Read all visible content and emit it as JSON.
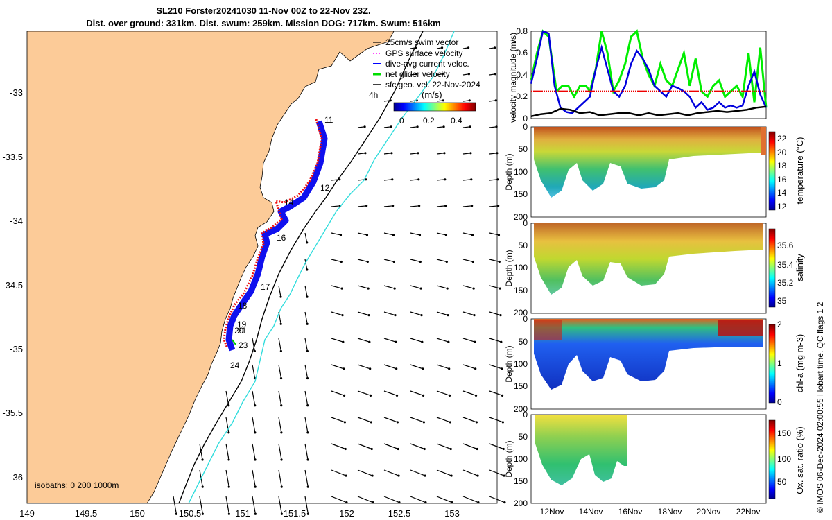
{
  "header": {
    "title_line1": "SL210 Forster20241030 11-Nov 00Z to 22-Nov 23Z.",
    "title_line2": "Dist. over ground: 331km. Dist. swum: 259km. Mission DOG: 717km. Swum: 516km"
  },
  "map": {
    "x_ticks": [
      "149",
      "149.5",
      "150",
      "150.5",
      "151",
      "151.5",
      "152",
      "152.5",
      "153"
    ],
    "y_ticks": [
      "-33",
      "-33.5",
      "-34",
      "-34.5",
      "-35",
      "-35.5",
      "-36"
    ],
    "legend": [
      {
        "label": "25cm/s swim vector",
        "color": "#000000"
      },
      {
        "label": "GPS surface velocity",
        "color": "#ff00ff"
      },
      {
        "label": "dive-avg current veloc.",
        "color": "#0000ff"
      },
      {
        "label": "net glider velocity",
        "color": "#00dd00"
      },
      {
        "label": "sfc geo. vel. 22-Nov-2024",
        "color": "#000000"
      }
    ],
    "scale_label": "4h",
    "colorbar_unit": "(m/s)",
    "colorbar_ticks": [
      "0",
      "0.2",
      "0.4"
    ],
    "day_labels": [
      "11",
      "12",
      "14",
      "16",
      "17",
      "18",
      "19",
      "20",
      "21",
      "23",
      "24"
    ],
    "isobaths_label": "isobaths: 0   200  1000m"
  },
  "colors": {
    "land": "#fccb98",
    "track_blue": "#1010ee",
    "track_red": "#ee1010",
    "isobath_200": "#000000",
    "isobath_1000": "#33dddd"
  },
  "chart_data": [
    {
      "type": "line",
      "title": "",
      "ylabel": "velocity magnitude (m/s)",
      "ylim": [
        0,
        0.8
      ],
      "yticks": [
        "0",
        "0.2",
        "0.4",
        "0.6",
        "0.8"
      ],
      "xlim_days": [
        11,
        23
      ],
      "series": [
        {
          "name": "net glider velocity",
          "color": "#00ee00",
          "x": [
            11.0,
            11.3,
            11.6,
            11.9,
            12.3,
            12.6,
            12.9,
            13.2,
            13.5,
            13.8,
            14.0,
            14.3,
            14.6,
            14.9,
            15.2,
            15.5,
            15.8,
            16.1,
            16.4,
            16.7,
            17.0,
            17.3,
            17.6,
            17.9,
            18.2,
            18.5,
            18.8,
            19.1,
            19.4,
            19.7,
            20.0,
            20.3,
            20.6,
            20.9,
            21.2,
            21.5,
            21.8,
            22.1,
            22.4,
            22.7,
            23.0
          ],
          "y": [
            0.35,
            0.6,
            0.8,
            0.75,
            0.25,
            0.3,
            0.3,
            0.2,
            0.3,
            0.3,
            0.25,
            0.45,
            0.8,
            0.6,
            0.25,
            0.35,
            0.5,
            0.75,
            0.8,
            0.55,
            0.4,
            0.3,
            0.5,
            0.35,
            0.3,
            0.45,
            0.6,
            0.3,
            0.55,
            0.25,
            0.2,
            0.3,
            0.35,
            0.2,
            0.25,
            0.3,
            0.2,
            0.6,
            0.15,
            0.65,
            0.1
          ]
        },
        {
          "name": "dive-avg current veloc.",
          "color": "#0000dd",
          "x": [
            11.0,
            11.3,
            11.6,
            11.9,
            12.2,
            12.5,
            12.8,
            13.1,
            13.4,
            13.7,
            14.0,
            14.3,
            14.6,
            14.9,
            15.2,
            15.5,
            15.8,
            16.1,
            16.4,
            16.7,
            17.0,
            17.3,
            17.6,
            17.9,
            18.2,
            18.5,
            18.8,
            19.1,
            19.4,
            19.7,
            20.0,
            20.3,
            20.6,
            20.9,
            21.2,
            21.5,
            21.8,
            22.1,
            22.4,
            22.7,
            23.0
          ],
          "y": [
            0.32,
            0.55,
            0.8,
            0.78,
            0.3,
            0.1,
            0.06,
            0.05,
            0.1,
            0.15,
            0.2,
            0.45,
            0.65,
            0.45,
            0.25,
            0.2,
            0.3,
            0.5,
            0.62,
            0.55,
            0.45,
            0.3,
            0.25,
            0.2,
            0.3,
            0.28,
            0.25,
            0.2,
            0.1,
            0.15,
            0.08,
            0.1,
            0.15,
            0.1,
            0.12,
            0.1,
            0.12,
            0.3,
            0.43,
            0.22,
            0.1
          ]
        },
        {
          "name": "GPS surface velocity",
          "color": "#ee0000",
          "x": [
            11.0,
            23.0
          ],
          "y": [
            0.25,
            0.25
          ]
        },
        {
          "name": "sfc geo. vel.",
          "color": "#000000",
          "x": [
            11.0,
            11.5,
            12.0,
            12.5,
            13.0,
            13.5,
            14.0,
            14.5,
            15.0,
            15.5,
            16.0,
            16.5,
            17.0,
            17.5,
            18.0,
            18.5,
            19.0,
            19.5,
            20.0,
            20.5,
            21.0,
            21.5,
            22.0,
            22.5,
            23.0
          ],
          "y": [
            0.02,
            0.04,
            0.05,
            0.09,
            0.08,
            0.05,
            0.06,
            0.03,
            0.04,
            0.05,
            0.05,
            0.03,
            0.05,
            0.03,
            0.04,
            0.05,
            0.03,
            0.05,
            0.06,
            0.07,
            0.06,
            0.07,
            0.08,
            0.1,
            0.11
          ]
        }
      ]
    },
    {
      "type": "heatmap",
      "variable": "temperature",
      "ylabel": "Depth (m)",
      "yticks": [
        "0",
        "50",
        "100",
        "150",
        "200"
      ],
      "ylim": [
        200,
        0
      ],
      "colorbar_label": "temperature (°C)",
      "colorbar_ticks": [
        "12",
        "14",
        "16",
        "18",
        "20",
        "22"
      ],
      "clim": [
        11,
        23
      ]
    },
    {
      "type": "heatmap",
      "variable": "salinity",
      "ylabel": "Depth (m)",
      "yticks": [
        "0",
        "50",
        "100",
        "150",
        "200"
      ],
      "ylim": [
        200,
        0
      ],
      "colorbar_label": "salinity",
      "colorbar_ticks": [
        "35",
        "35.2",
        "35.4",
        "35.6"
      ],
      "clim": [
        34.9,
        35.75
      ]
    },
    {
      "type": "heatmap",
      "variable": "chl-a",
      "ylabel": "Depth (m)",
      "yticks": [
        "0",
        "50",
        "100",
        "150",
        "200"
      ],
      "ylim": [
        200,
        0
      ],
      "colorbar_label": "chl-a (mg m-3)",
      "colorbar_ticks": [
        "0",
        "1",
        "2"
      ],
      "clim": [
        0,
        2
      ]
    },
    {
      "type": "heatmap",
      "variable": "oxygen saturation",
      "ylabel": "Depth (m)",
      "yticks": [
        "0",
        "50",
        "100",
        "150",
        "200"
      ],
      "ylim": [
        200,
        0
      ],
      "colorbar_label": "Ox. sat. ratio (%)",
      "colorbar_ticks": [
        "50",
        "100",
        "150"
      ],
      "clim": [
        25,
        175
      ]
    }
  ],
  "time_axis": {
    "ticks": [
      "12Nov",
      "14Nov",
      "16Nov",
      "18Nov",
      "20Nov",
      "22Nov"
    ]
  },
  "footer": {
    "credit": "© IMOS 06-Dec-2024 02:00:55 Hobart time. QC flags 1  2"
  }
}
